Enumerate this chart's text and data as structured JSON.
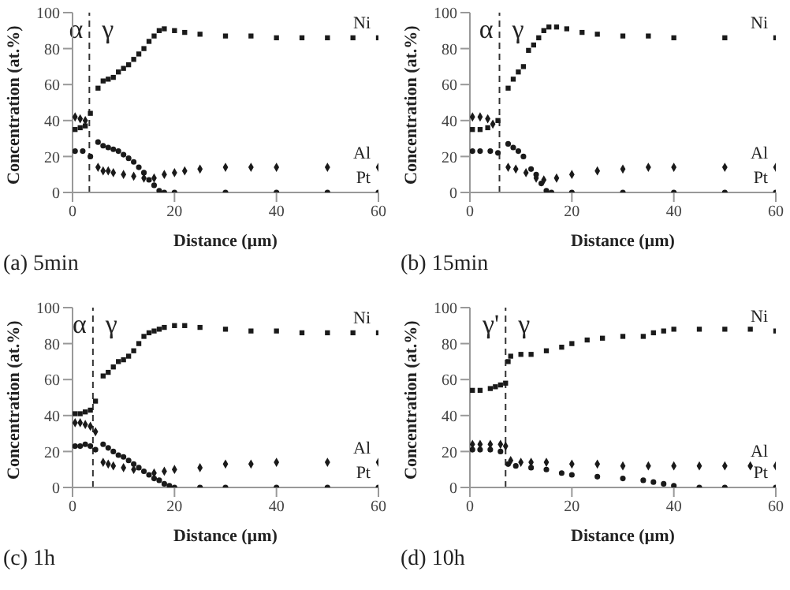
{
  "chart_data": [
    {
      "type": "scatter",
      "title": "(a) 5min",
      "xlabel": "Distance (µm)",
      "ylabel": "Concentration (at.%)",
      "xlim": [
        0,
        60
      ],
      "xticks": [
        0,
        20,
        40,
        60
      ],
      "ylim": [
        0,
        100
      ],
      "yticks": [
        0,
        20,
        40,
        60,
        80,
        100
      ],
      "annotations": [
        "α",
        "γ"
      ],
      "ref_lines": [
        {
          "axis": "x",
          "value": 3.3,
          "line_style": "dashed",
          "color": "#333333"
        }
      ],
      "series": [
        {
          "name": "Ni",
          "color": "#1a1a1a",
          "marker": "square",
          "x": [
            0.5,
            1.5,
            2.5,
            3.5,
            5,
            6,
            7,
            8,
            9,
            10,
            11,
            12,
            13,
            14,
            15,
            16,
            17,
            18,
            20,
            22,
            25,
            30,
            35,
            40,
            45,
            50,
            55,
            60
          ],
          "values": [
            35,
            36,
            37,
            44,
            58,
            62,
            63,
            64,
            67,
            69,
            71,
            74,
            77,
            80,
            84,
            87,
            90,
            91,
            90,
            89,
            88,
            87,
            87,
            86,
            86,
            86,
            86,
            86
          ]
        },
        {
          "name": "Al",
          "color": "#1a1a1a",
          "marker": "diamond",
          "x": [
            0.5,
            1.5,
            2.5,
            5,
            6,
            7,
            8,
            10,
            12,
            14,
            16,
            18,
            20,
            22,
            25,
            30,
            35,
            40,
            50,
            60
          ],
          "values": [
            42,
            41,
            40,
            14,
            12,
            12,
            11,
            10,
            9,
            8,
            8,
            10,
            11,
            12,
            13,
            14,
            14,
            14,
            14,
            14
          ]
        },
        {
          "name": "Pt",
          "color": "#1a1a1a",
          "marker": "circle",
          "x": [
            0.5,
            2,
            3.5,
            5,
            6,
            7,
            8,
            9,
            10,
            11,
            12,
            13,
            14,
            15,
            16,
            17,
            18,
            20,
            30,
            40,
            50,
            60
          ],
          "values": [
            23,
            23,
            20,
            28,
            26,
            25,
            24,
            23,
            21,
            19,
            17,
            14,
            11,
            7,
            4,
            1,
            0,
            0,
            0,
            0,
            0,
            0
          ]
        }
      ]
    },
    {
      "type": "scatter",
      "title": "(b) 15min",
      "xlabel": "Distance (µm)",
      "ylabel": "Concentration (at.%)",
      "xlim": [
        0,
        60
      ],
      "xticks": [
        0,
        20,
        40,
        60
      ],
      "ylim": [
        0,
        100
      ],
      "yticks": [
        0,
        20,
        40,
        60,
        80,
        100
      ],
      "annotations": [
        "α",
        "γ"
      ],
      "ref_lines": [
        {
          "axis": "x",
          "value": 5.8,
          "line_style": "dashed",
          "color": "#333333"
        }
      ],
      "series": [
        {
          "name": "Ni",
          "color": "#1a1a1a",
          "marker": "square",
          "x": [
            0.5,
            2,
            3.5,
            5.5,
            7.5,
            8.5,
            9.5,
            10.5,
            11.5,
            12.5,
            13.5,
            14.5,
            15.5,
            17,
            19,
            22,
            25,
            30,
            35,
            40,
            50,
            60
          ],
          "values": [
            35,
            35,
            36,
            40,
            58,
            63,
            67,
            70,
            79,
            82,
            86,
            90,
            92,
            92,
            91,
            89,
            88,
            87,
            87,
            86,
            86,
            86
          ]
        },
        {
          "name": "Al",
          "color": "#1a1a1a",
          "marker": "diamond",
          "x": [
            0.5,
            2,
            3.5,
            4.5,
            7.5,
            9,
            11,
            13,
            14.5,
            17,
            20,
            25,
            30,
            35,
            40,
            50,
            60
          ],
          "values": [
            42,
            42,
            41,
            38,
            14,
            13,
            11,
            8,
            7,
            8,
            10,
            12,
            13,
            14,
            14,
            14,
            14
          ]
        },
        {
          "name": "Pt",
          "color": "#1a1a1a",
          "marker": "circle",
          "x": [
            0.5,
            2,
            4,
            5.5,
            7.5,
            8.5,
            9.5,
            10.5,
            12,
            13,
            14,
            15,
            16,
            20,
            30,
            40,
            50,
            60
          ],
          "values": [
            23,
            23,
            23,
            22,
            27,
            25,
            23,
            20,
            13,
            10,
            5,
            1,
            0,
            0,
            0,
            0,
            0,
            0
          ]
        }
      ]
    },
    {
      "type": "scatter",
      "title": "(c) 1h",
      "xlabel": "Distance (µm)",
      "ylabel": "Concentration (at.%)",
      "xlim": [
        0,
        60
      ],
      "xticks": [
        0,
        20,
        40,
        60
      ],
      "ylim": [
        0,
        100
      ],
      "yticks": [
        0,
        20,
        40,
        60,
        80,
        100
      ],
      "annotations": [
        "α",
        "γ"
      ],
      "ref_lines": [
        {
          "axis": "x",
          "value": 4,
          "line_style": "dashed",
          "color": "#333333"
        }
      ],
      "series": [
        {
          "name": "Ni",
          "color": "#1a1a1a",
          "marker": "square",
          "x": [
            0.5,
            1.5,
            2.5,
            3.5,
            4.5,
            6,
            7,
            8,
            9,
            10,
            11,
            12,
            13,
            14,
            15,
            16,
            17,
            18,
            20,
            22,
            25,
            30,
            35,
            40,
            45,
            50,
            55,
            60
          ],
          "values": [
            41,
            41,
            42,
            43,
            48,
            62,
            64,
            67,
            70,
            71,
            73,
            76,
            80,
            84,
            86,
            87,
            88,
            89,
            90,
            90,
            89,
            88,
            87,
            87,
            86,
            86,
            86,
            86
          ]
        },
        {
          "name": "Al",
          "color": "#1a1a1a",
          "marker": "diamond",
          "x": [
            0.5,
            1.5,
            2.5,
            3.5,
            4.5,
            6,
            7,
            8,
            10,
            12,
            14,
            16,
            18,
            20,
            25,
            30,
            35,
            40,
            50,
            60
          ],
          "values": [
            36,
            36,
            35,
            34,
            31,
            14,
            13,
            12,
            11,
            10,
            null,
            8,
            9,
            10,
            11,
            13,
            13,
            14,
            14,
            14
          ]
        },
        {
          "name": "Pt",
          "color": "#1a1a1a",
          "marker": "circle",
          "x": [
            0.5,
            1.5,
            2.5,
            3.5,
            4.5,
            6,
            7,
            8,
            9,
            10,
            11,
            12,
            13,
            14,
            15,
            16,
            17,
            18,
            19,
            20,
            25,
            30,
            40,
            50,
            60
          ],
          "values": [
            23,
            23,
            24,
            23,
            21,
            24,
            22,
            20,
            18,
            17,
            15,
            13,
            11,
            9,
            7,
            5,
            4,
            2,
            1,
            0,
            0,
            0,
            0,
            0,
            0
          ]
        }
      ]
    },
    {
      "type": "scatter",
      "title": "(d) 10h",
      "xlabel": "Distance (µm)",
      "ylabel": "Concentration (at.%)",
      "xlim": [
        0,
        60
      ],
      "xticks": [
        0,
        20,
        40,
        60
      ],
      "ylim": [
        0,
        100
      ],
      "yticks": [
        0,
        20,
        40,
        60,
        80,
        100
      ],
      "annotations": [
        "γ'",
        "γ"
      ],
      "ref_lines": [
        {
          "axis": "x",
          "value": 7,
          "line_style": "dashed",
          "color": "#333333"
        }
      ],
      "series": [
        {
          "name": "Ni",
          "color": "#1a1a1a",
          "marker": "square",
          "x": [
            0.5,
            2,
            4,
            5,
            6,
            7,
            7.5,
            8,
            10,
            12,
            15,
            18,
            20,
            23,
            26,
            30,
            34,
            36,
            38,
            40,
            45,
            50,
            55,
            60
          ],
          "values": [
            54,
            54,
            55,
            56,
            57,
            58,
            70,
            73,
            74,
            74,
            76,
            78,
            80,
            82,
            83,
            84,
            84,
            86,
            87,
            88,
            88,
            88,
            88,
            87
          ]
        },
        {
          "name": "Al",
          "color": "#1a1a1a",
          "marker": "diamond",
          "x": [
            0.5,
            2,
            4,
            6,
            7,
            8,
            10,
            12,
            15,
            20,
            25,
            30,
            35,
            40,
            45,
            50,
            55,
            60
          ],
          "values": [
            24,
            24,
            24,
            24,
            23,
            15,
            14,
            14,
            14,
            13,
            13,
            12,
            12,
            12,
            12,
            12,
            12,
            12
          ]
        },
        {
          "name": "Pt",
          "color": "#1a1a1a",
          "marker": "circle",
          "x": [
            0.5,
            2,
            4,
            6,
            7.5,
            9,
            12,
            15,
            18,
            20,
            25,
            30,
            34,
            36,
            38,
            40,
            45,
            50,
            60
          ],
          "values": [
            21,
            21,
            21,
            20,
            13,
            12,
            11,
            10,
            8,
            7,
            6,
            5,
            4,
            3,
            2,
            1,
            0,
            0,
            0
          ]
        }
      ]
    }
  ]
}
